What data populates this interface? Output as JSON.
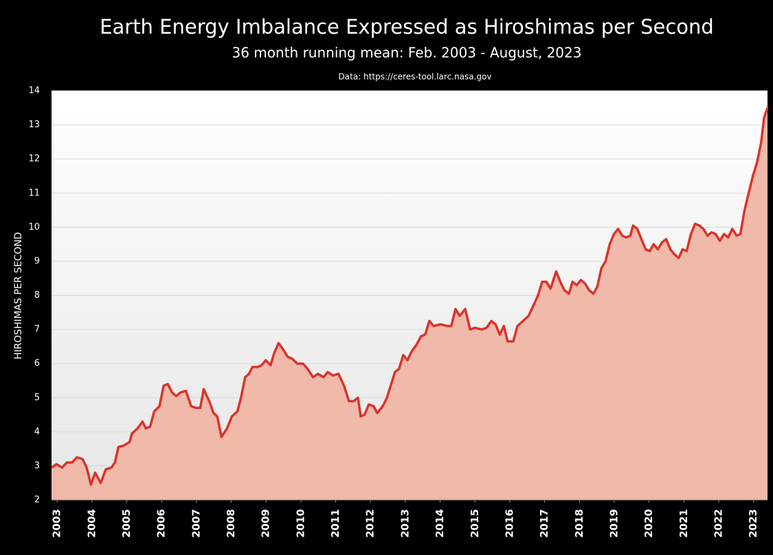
{
  "chart_data": {
    "type": "area",
    "title": "Earth Energy Imbalance Expressed as Hiroshimas per Second",
    "subtitle": "36 month running mean: Feb. 2003 - August, 2023",
    "source": "Data: https://ceres-tool.larc.nasa.gov",
    "ylabel": "HIROSHIMAS PER SECOND",
    "line_color": "#d9342b",
    "fill_color": "#f0b9aa",
    "grid": true,
    "xlim": [
      2002.84,
      2023.4
    ],
    "xticks": [
      2003,
      2004,
      2005,
      2006,
      2007,
      2008,
      2009,
      2010,
      2011,
      2012,
      2013,
      2014,
      2015,
      2016,
      2017,
      2018,
      2019,
      2020,
      2021,
      2022,
      2023
    ],
    "ylim": [
      2,
      14
    ],
    "yticks": [
      2,
      3,
      4,
      5,
      6,
      7,
      8,
      9,
      10,
      11,
      12,
      13,
      14
    ],
    "x": [
      2002.84,
      2002.98,
      2003.14,
      2003.28,
      2003.43,
      2003.57,
      2003.73,
      2003.85,
      2003.97,
      2004.09,
      2004.25,
      2004.4,
      2004.56,
      2004.66,
      2004.76,
      2004.92,
      2005.08,
      2005.15,
      2005.31,
      2005.45,
      2005.55,
      2005.67,
      2005.79,
      2005.94,
      2006.06,
      2006.18,
      2006.3,
      2006.42,
      2006.54,
      2006.7,
      2006.85,
      2006.99,
      2007.11,
      2007.21,
      2007.39,
      2007.49,
      2007.6,
      2007.72,
      2007.88,
      2008.02,
      2008.18,
      2008.28,
      2008.4,
      2008.51,
      2008.61,
      2008.75,
      2008.87,
      2008.99,
      2009.13,
      2009.23,
      2009.36,
      2009.5,
      2009.62,
      2009.74,
      2009.9,
      2010.06,
      2010.19,
      2010.35,
      2010.49,
      2010.65,
      2010.77,
      2010.92,
      2011.08,
      2011.24,
      2011.38,
      2011.52,
      2011.64,
      2011.72,
      2011.83,
      2011.95,
      2012.09,
      2012.19,
      2012.35,
      2012.47,
      2012.58,
      2012.7,
      2012.82,
      2012.94,
      2013.06,
      2013.18,
      2013.32,
      2013.45,
      2013.57,
      2013.69,
      2013.81,
      2014.01,
      2014.21,
      2014.32,
      2014.44,
      2014.56,
      2014.72,
      2014.86,
      2015.0,
      2015.19,
      2015.33,
      2015.47,
      2015.59,
      2015.71,
      2015.83,
      2015.94,
      2016.1,
      2016.22,
      2016.38,
      2016.54,
      2016.7,
      2016.81,
      2016.93,
      2017.05,
      2017.17,
      2017.33,
      2017.45,
      2017.57,
      2017.7,
      2017.8,
      2017.92,
      2018.04,
      2018.16,
      2018.28,
      2018.4,
      2018.51,
      2018.63,
      2018.75,
      2018.87,
      2018.99,
      2019.11,
      2019.23,
      2019.34,
      2019.46,
      2019.54,
      2019.66,
      2019.78,
      2019.9,
      2020.02,
      2020.13,
      2020.25,
      2020.37,
      2020.49,
      2020.61,
      2020.73,
      2020.85,
      2020.96,
      2021.08,
      2021.2,
      2021.32,
      2021.44,
      2021.56,
      2021.68,
      2021.79,
      2021.91,
      2022.03,
      2022.15,
      2022.27,
      2022.39,
      2022.51,
      2022.62,
      2022.74,
      2022.86,
      2022.98,
      2023.1,
      2023.22,
      2023.3,
      2023.4
    ],
    "values": [
      2.95,
      3.05,
      2.95,
      3.1,
      3.1,
      3.25,
      3.2,
      2.95,
      2.45,
      2.8,
      2.5,
      2.9,
      2.95,
      3.1,
      3.55,
      3.6,
      3.7,
      3.95,
      4.1,
      4.3,
      4.1,
      4.15,
      4.6,
      4.75,
      5.35,
      5.4,
      5.15,
      5.05,
      5.15,
      5.2,
      4.75,
      4.7,
      4.7,
      5.25,
      4.85,
      4.55,
      4.45,
      3.85,
      4.1,
      4.45,
      4.6,
      5.0,
      5.6,
      5.7,
      5.9,
      5.9,
      5.95,
      6.1,
      5.95,
      6.3,
      6.6,
      6.4,
      6.2,
      6.15,
      6.0,
      6.0,
      5.85,
      5.6,
      5.7,
      5.6,
      5.75,
      5.65,
      5.7,
      5.35,
      4.9,
      4.9,
      5.0,
      4.45,
      4.5,
      4.8,
      4.75,
      4.55,
      4.75,
      5.0,
      5.35,
      5.75,
      5.85,
      6.25,
      6.1,
      6.35,
      6.55,
      6.8,
      6.85,
      7.25,
      7.1,
      7.15,
      7.1,
      7.1,
      7.6,
      7.4,
      7.6,
      7.0,
      7.05,
      7.0,
      7.05,
      7.25,
      7.15,
      6.85,
      7.1,
      6.65,
      6.65,
      7.1,
      7.25,
      7.4,
      7.75,
      8.0,
      8.4,
      8.4,
      8.2,
      8.7,
      8.4,
      8.15,
      8.05,
      8.4,
      8.3,
      8.45,
      8.35,
      8.15,
      8.05,
      8.25,
      8.8,
      9.0,
      9.5,
      9.8,
      9.95,
      9.75,
      9.7,
      9.75,
      10.05,
      9.95,
      9.65,
      9.35,
      9.3,
      9.5,
      9.35,
      9.55,
      9.65,
      9.35,
      9.2,
      9.1,
      9.35,
      9.3,
      9.8,
      10.1,
      10.05,
      9.95,
      9.75,
      9.85,
      9.8,
      9.6,
      9.8,
      9.7,
      9.95,
      9.75,
      9.8,
      10.5,
      11.0,
      11.5,
      11.9,
      12.5,
      13.2,
      13.5
    ]
  }
}
